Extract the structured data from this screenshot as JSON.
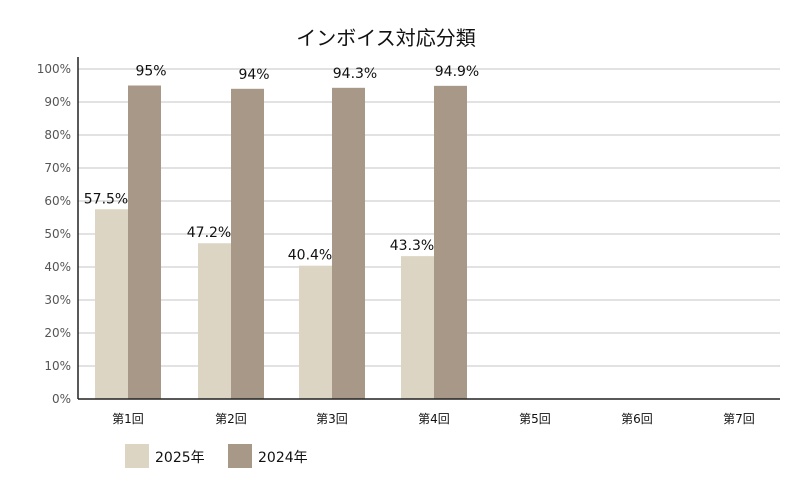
{
  "chart_data": {
    "type": "bar",
    "title": "インボイス対応分類",
    "categories": [
      "第1回",
      "第2回",
      "第3回",
      "第4回",
      "第5回",
      "第6回",
      "第7回"
    ],
    "series": [
      {
        "name": "2025年",
        "color": "#dcd5c3",
        "values": [
          57.5,
          47.2,
          40.4,
          43.3,
          null,
          null,
          null
        ],
        "labels": [
          "57.5%",
          "47.2%",
          "40.4%",
          "43.3%",
          "",
          "",
          ""
        ]
      },
      {
        "name": "2024年",
        "color": "#a89888",
        "values": [
          95,
          94,
          94.3,
          94.9,
          null,
          null,
          null
        ],
        "labels": [
          "95%",
          "94%",
          "94.3%",
          "94.9%",
          "",
          "",
          ""
        ]
      }
    ],
    "ylim": [
      0,
      100
    ],
    "yticks": [
      "0%",
      "10%",
      "20%",
      "30%",
      "40%",
      "50%",
      "60%",
      "70%",
      "80%",
      "90%",
      "100%"
    ],
    "xlabel": "",
    "ylabel": "",
    "grid": true,
    "legend_position": "bottom-left",
    "colors": {
      "grid": "#d0d0d0",
      "axis": "#222222"
    }
  }
}
